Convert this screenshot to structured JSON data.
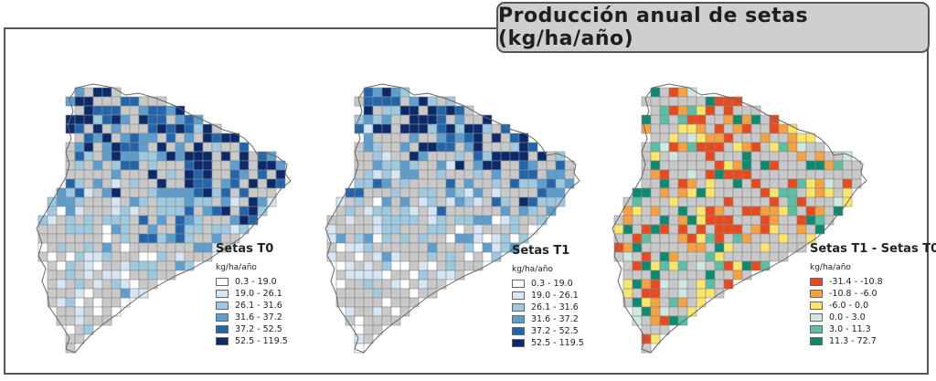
{
  "title": "Producción anual de setas (kg/ha/año)",
  "maps": [
    {
      "id": "t0",
      "legend_title": "Setas T0",
      "unit": "kg/ha/año",
      "classes": [
        {
          "label": "0.3 - 19.0",
          "color": "#ffffff"
        },
        {
          "label": "19.0 - 26.1",
          "color": "#d6e6f5"
        },
        {
          "label": "26.1 - 31.6",
          "color": "#9ecae1"
        },
        {
          "label": "31.6 - 37.2",
          "color": "#5a9fd0"
        },
        {
          "label": "37.2 - 52.5",
          "color": "#2166ac"
        },
        {
          "label": "52.5 - 119.5",
          "color": "#0a2a6b"
        }
      ]
    },
    {
      "id": "t1",
      "legend_title": "Setas T1",
      "unit": "kg/ha/año",
      "classes": [
        {
          "label": "0.3 - 19.0",
          "color": "#ffffff"
        },
        {
          "label": "19.0 - 26.1",
          "color": "#d6e6f5"
        },
        {
          "label": "26.1 - 31.6",
          "color": "#9ecae1"
        },
        {
          "label": "31.6 - 37.2",
          "color": "#5a9fd0"
        },
        {
          "label": "37.2 - 52.5",
          "color": "#2166ac"
        },
        {
          "label": "52.5 - 119.5",
          "color": "#0a2a6b"
        }
      ]
    },
    {
      "id": "diff",
      "legend_title": "Setas T1 - Setas T0",
      "unit": "kg/ha/año",
      "classes": [
        {
          "label": "-31.4 - -10.8",
          "color": "#e8491d"
        },
        {
          "label": "-10.8 - -6.0",
          "color": "#f7a040"
        },
        {
          "label": "-6.0 - 0.0",
          "color": "#fbe66a"
        },
        {
          "label": "0.0 - 3.0",
          "color": "#cfe8e0"
        },
        {
          "label": "3.0 - 11.3",
          "color": "#5bbfa6"
        },
        {
          "label": "11.3 - 72.7",
          "color": "#0b8a72"
        }
      ]
    }
  ],
  "no_data_color": "#c9c9c9",
  "grid_line_color": "#8a8a8a"
}
